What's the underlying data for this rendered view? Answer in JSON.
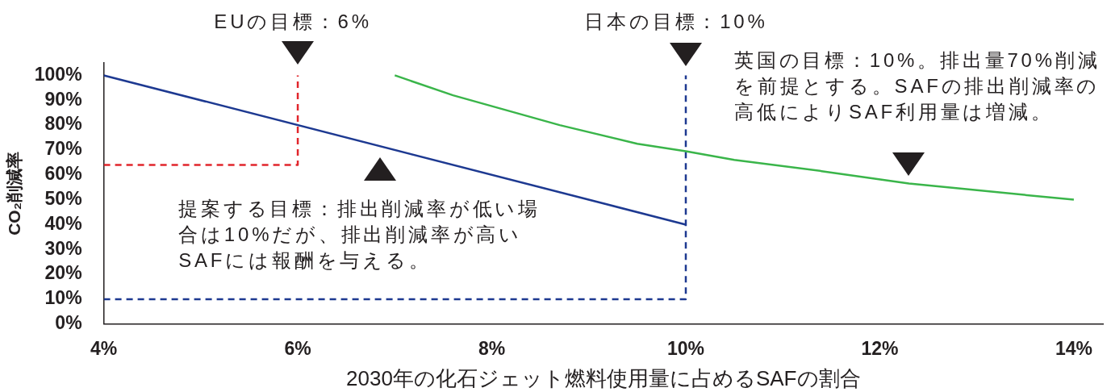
{
  "chart_data": {
    "type": "line",
    "xlabel": "2030年の化石ジェット燃料使用量に占めるSAFの割合",
    "ylabel": "CO₂削減率",
    "xlim": [
      4,
      14.3
    ],
    "xticks": [
      {
        "value": 4,
        "label": "4%"
      },
      {
        "value": 6,
        "label": "6%"
      },
      {
        "value": 8,
        "label": "8%"
      },
      {
        "value": 10,
        "label": "10%"
      },
      {
        "value": 12,
        "label": "12%"
      },
      {
        "value": 14,
        "label": "14%"
      }
    ],
    "ylim": [
      0,
      105
    ],
    "yticks": [
      {
        "value": 0,
        "label": "0%"
      },
      {
        "value": 10,
        "label": "10%"
      },
      {
        "value": 20,
        "label": "20%"
      },
      {
        "value": 30,
        "label": "30%"
      },
      {
        "value": 40,
        "label": "40%"
      },
      {
        "value": 50,
        "label": "50%"
      },
      {
        "value": 60,
        "label": "60%"
      },
      {
        "value": 70,
        "label": "70%"
      },
      {
        "value": 80,
        "label": "80%"
      },
      {
        "value": 90,
        "label": "90%"
      },
      {
        "value": 100,
        "label": "100%"
      }
    ],
    "marker": "none",
    "series": [
      {
        "color": "#1d3991",
        "x": [
          4,
          10
        ],
        "values": [
          100,
          40
        ]
      },
      {
        "color": "#3ab54a",
        "x": [
          7,
          7.6,
          8.7,
          9.5,
          10,
          10.5,
          11.4,
          12.3,
          14
        ],
        "values": [
          100,
          92,
          80,
          72.5,
          69.5,
          66,
          61.5,
          56.5,
          50
        ]
      },
      {
        "color": "#e1262c",
        "x": [
          4,
          6,
          6
        ],
        "values": [
          64,
          64,
          100
        ],
        "line_style": "dashed"
      },
      {
        "color": "#1d3991",
        "x": [
          4,
          10,
          10
        ],
        "values": [
          10,
          10,
          100
        ],
        "line_style": "dashed"
      }
    ],
    "annotations": [
      {
        "text": "EUの目標：6%",
        "x": 6,
        "y": 100
      },
      {
        "text": "日本の目標：10%",
        "x": 10,
        "y": 100
      },
      "英国の目標：10%。排出量70%削減を前提とする。SAFの排出削減率の高低によりSAF利用量は増減。",
      {
        "text": "提案する目標：排出削減率が低い場合は10%だが、排出削減率が高いSAFには報酬を与える。",
        "x": 6.85,
        "y": 72
      }
    ]
  }
}
